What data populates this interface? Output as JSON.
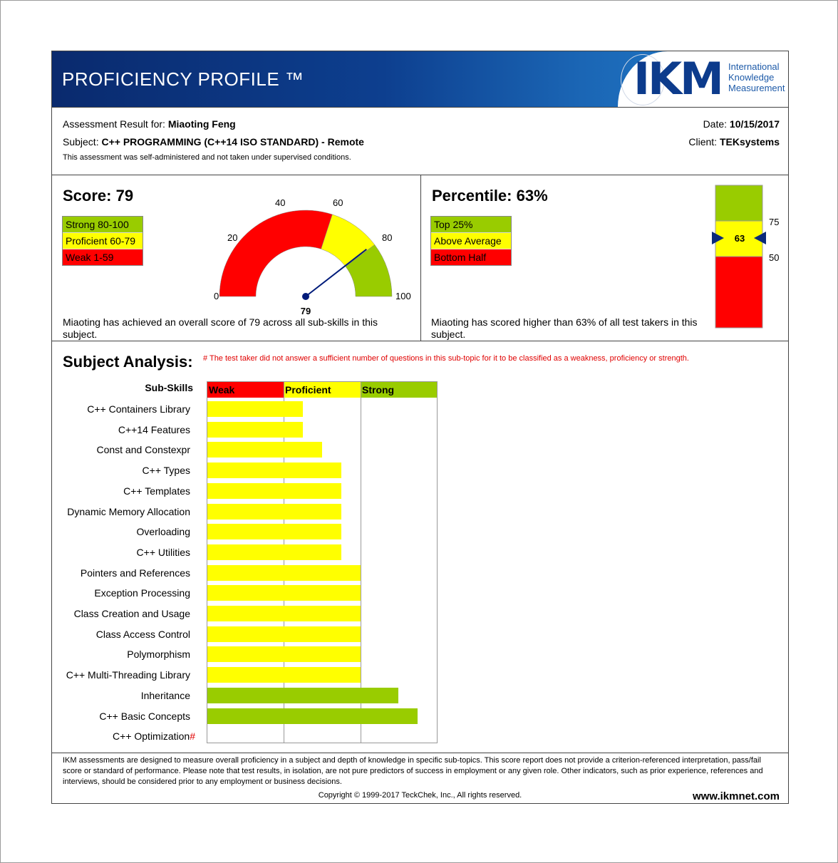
{
  "header": {
    "title": "PROFICIENCY PROFILE ™",
    "logo_text": "IKM",
    "logo_full_name": [
      "International",
      "Knowledge",
      "Measurement"
    ]
  },
  "assessment": {
    "result_for_label": "Assessment Result for:",
    "candidate": "Miaoting Feng",
    "subject_label": "Subject:",
    "subject": "C++ PROGRAMMING (C++14 ISO STANDARD) - Remote",
    "note": "This assessment was self-administered and not taken under supervised conditions.",
    "date_label": "Date:",
    "date": "10/15/2017",
    "client_label": "Client:",
    "client": "TEKsystems"
  },
  "score": {
    "title": "Score: 79",
    "value": 79,
    "legend": [
      {
        "label": "Strong 80-100",
        "color": "#99cc00"
      },
      {
        "label": "Proficient 60-79",
        "color": "#ffff00"
      },
      {
        "label": "Weak 1-59",
        "color": "#ff0000"
      }
    ],
    "gauge_ticks": [
      "0",
      "20",
      "40",
      "60",
      "80",
      "100"
    ],
    "value_label": "79",
    "description": "Miaoting has achieved an overall score of 79 across all sub-skills in this subject."
  },
  "percentile": {
    "title": "Percentile: 63%",
    "value": 63,
    "legend": [
      {
        "label": "Top 25%",
        "color": "#99cc00"
      },
      {
        "label": "Above Average",
        "color": "#ffff00"
      },
      {
        "label": "Bottom Half",
        "color": "#ff0000"
      }
    ],
    "marker_label": "63",
    "ticks": [
      "75",
      "50"
    ],
    "description": "Miaoting has scored higher than 63% of all test takers in this subject."
  },
  "analysis": {
    "title": "Subject Analysis:",
    "note": "# The test taker did not answer a sufficient number of questions in this sub-topic for it to be classified as a weakness, proficiency or strength.",
    "sub_skills_label": "Sub-Skills",
    "columns": [
      {
        "label": "Weak",
        "color": "#ff0000"
      },
      {
        "label": "Proficient",
        "color": "#ffff00"
      },
      {
        "label": "Strong",
        "color": "#99cc00"
      }
    ]
  },
  "chart_data": {
    "type": "bar",
    "orientation": "horizontal",
    "bands": [
      "Weak",
      "Proficient",
      "Strong"
    ],
    "categories": [
      "C++ Containers Library",
      "C++14 Features",
      "Const and Constexpr",
      "C++ Types",
      "C++ Templates",
      "Dynamic Memory Allocation",
      "Overloading",
      "C++ Utilities",
      "Pointers and References",
      "Exception Processing",
      "Class Creation and Usage",
      "Class Access Control",
      "Polymorphism",
      "C++ Multi-Threading Library",
      "Inheritance",
      "C++ Basic Concepts",
      "C++ Optimization"
    ],
    "values": [
      1.25,
      1.25,
      1.5,
      1.75,
      1.75,
      1.75,
      1.75,
      1.75,
      2.0,
      2.0,
      2.0,
      2.0,
      2.0,
      2.0,
      2.5,
      2.75,
      null
    ],
    "insufficient": [
      false,
      false,
      false,
      false,
      false,
      false,
      false,
      false,
      false,
      false,
      false,
      false,
      false,
      false,
      false,
      false,
      true
    ],
    "xlim": [
      0,
      3
    ]
  },
  "footer": {
    "disclaimer": "IKM assessments are designed to measure overall proficiency in a subject and depth of knowledge in specific sub-topics. This score report does not provide a criterion-referenced interpretation, pass/fail score or standard of performance. Please note that test results, in isolation, are not pure predictors of success in employment or any given role. Other indicators, such as prior experience, references and interviews, should be considered prior to any employment or business decisions.",
    "copyright": "Copyright © 1999-2017 TeckChek, Inc., All rights reserved.",
    "website": "www.ikmnet.com"
  }
}
